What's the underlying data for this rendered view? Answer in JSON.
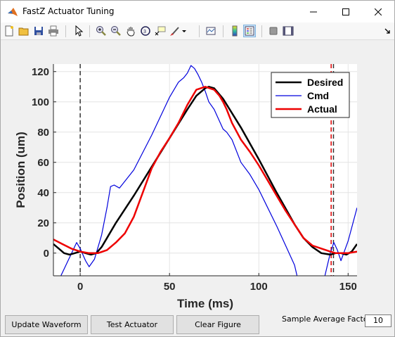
{
  "window": {
    "title": "FastZ Actuator Tuning",
    "controls": [
      "minimize",
      "maximize",
      "close"
    ]
  },
  "toolbar": {
    "icons": [
      "new-figure-icon",
      "open-file-icon",
      "save-icon",
      "print-icon",
      "pointer-icon",
      "zoom-in-icon",
      "zoom-out-icon",
      "pan-icon",
      "rotate-3d-icon",
      "data-cursor-icon",
      "brush-icon",
      "brush-dropdown-icon",
      "link-plot-icon",
      "colorbar-icon",
      "legend-icon",
      "plot-tools-hide-icon",
      "plot-tools-show-icon"
    ],
    "dock_arrow": "dock-arrow-icon"
  },
  "chart_data": {
    "type": "line",
    "title": "",
    "xlabel": "Time (ms)",
    "ylabel": "Position (um)",
    "xlim": [
      -15,
      155
    ],
    "ylim": [
      -15,
      125
    ],
    "xticks": [
      0,
      50,
      100,
      150
    ],
    "yticks": [
      0,
      20,
      40,
      60,
      80,
      100,
      120
    ],
    "grid": true,
    "legend": "top-right",
    "vlines": [
      {
        "x": 0,
        "color": "#333333",
        "style": "dashed"
      },
      {
        "x": 140.5,
        "color": "#e00000",
        "style": "dashed"
      },
      {
        "x": 141.8,
        "color": "#333333",
        "style": "dashed"
      }
    ],
    "series": [
      {
        "name": "Desired",
        "color": "#000000",
        "width": 2.5,
        "x": [
          -15,
          -12,
          -9,
          -6,
          -3,
          0,
          3,
          6,
          9,
          12,
          15,
          20,
          30,
          40,
          50,
          60,
          65,
          70,
          72,
          75,
          80,
          90,
          100,
          110,
          120,
          125,
          130,
          135,
          140,
          143,
          146,
          149,
          152,
          155
        ],
        "y": [
          6,
          3,
          0,
          -1,
          0,
          1,
          0,
          -1,
          0,
          4,
          10,
          20,
          38,
          57,
          76,
          95,
          104,
          109,
          110,
          109,
          102,
          83,
          62,
          40,
          19,
          10,
          4,
          0,
          -1,
          0,
          0,
          -1,
          1,
          6
        ]
      },
      {
        "name": "Cmd",
        "color": "#0000dd",
        "width": 1.2,
        "x": [
          -12,
          -8,
          -4,
          -2,
          0,
          3,
          5,
          8,
          12,
          15,
          17,
          19,
          22,
          30,
          40,
          50,
          55,
          58,
          60,
          62,
          64,
          66,
          68,
          70,
          72,
          75,
          80,
          82,
          85,
          90,
          95,
          100,
          105,
          110,
          115,
          120,
          122,
          124,
          128,
          132,
          136,
          140,
          142,
          144,
          146,
          150,
          155
        ],
        "y": [
          -18,
          -8,
          2,
          7,
          3,
          -5,
          -9,
          -4,
          12,
          30,
          44,
          45,
          43,
          55,
          78,
          103,
          113,
          116,
          119,
          124,
          122,
          118,
          113,
          107,
          100,
          95,
          82,
          80,
          75,
          60,
          52,
          42,
          30,
          18,
          5,
          -8,
          -18,
          -25,
          -25,
          -25,
          -20,
          0,
          7,
          2,
          -5,
          8,
          30
        ]
      },
      {
        "name": "Actual",
        "color": "#ee0000",
        "width": 2.5,
        "x": [
          -15,
          -10,
          -5,
          0,
          5,
          10,
          15,
          20,
          25,
          30,
          35,
          40,
          45,
          50,
          55,
          60,
          65,
          70,
          75,
          78,
          80,
          82,
          85,
          90,
          95,
          100,
          105,
          110,
          115,
          120,
          125,
          130,
          135,
          140,
          143,
          146,
          150,
          155
        ],
        "y": [
          9,
          6,
          3,
          1,
          0,
          0,
          2,
          7,
          13,
          24,
          40,
          56,
          67,
          76,
          86,
          98,
          108,
          110,
          108,
          104,
          100,
          95,
          86,
          75,
          67,
          58,
          48,
          38,
          28,
          19,
          10,
          5,
          3,
          1,
          0,
          0,
          0,
          1
        ]
      }
    ]
  },
  "controls": {
    "update_waveform": "Update Waveform",
    "test_actuator": "Test Actuator",
    "clear_figure": "Clear Figure",
    "sample_average_label": "Sample Average Factor",
    "sample_average_value": "10"
  }
}
